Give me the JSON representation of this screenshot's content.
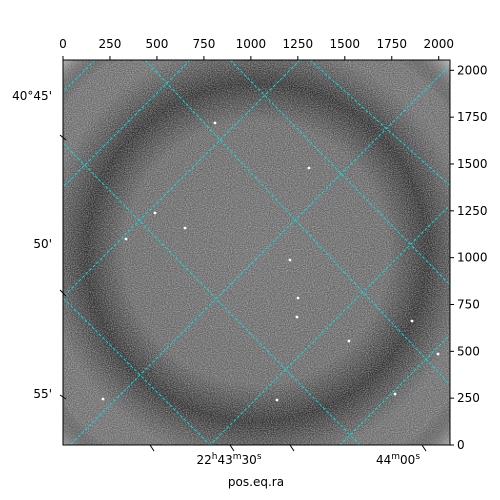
{
  "figure": {
    "xlabel": "pos.eq.ra",
    "top_ticks": [
      "0",
      "250",
      "500",
      "750",
      "1000",
      "1250",
      "1500",
      "1750",
      "2000"
    ],
    "right_ticks": [
      "0",
      "250",
      "500",
      "750",
      "1000",
      "1250",
      "1500",
      "1750",
      "2000"
    ],
    "dec_ticks": [
      "40°45'",
      "50'",
      "55'"
    ],
    "ra_ticks": [
      {
        "h": "22",
        "hs": "h",
        "m": "43",
        "ms": "m",
        "s": "30",
        "ss": "s"
      },
      {
        "m": "44",
        "ms": "m",
        "s": "00",
        "ss": "s"
      }
    ],
    "colors": {
      "grid": "#00e5e5",
      "frame": "#000000",
      "background": "#ffffff"
    }
  }
}
